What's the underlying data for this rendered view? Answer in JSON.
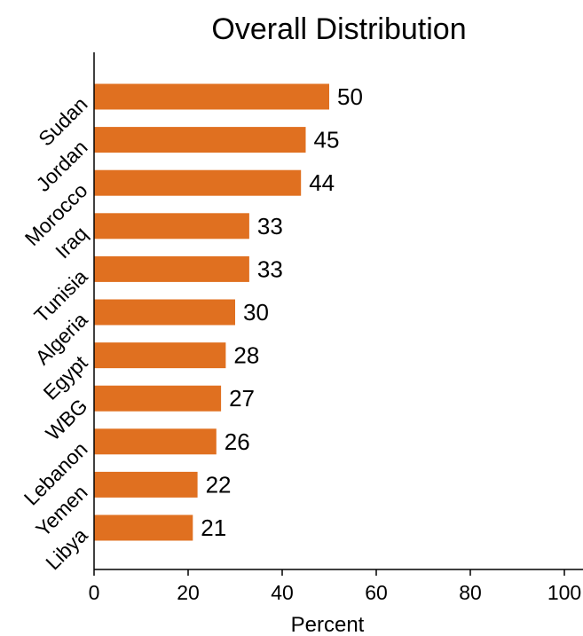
{
  "chart_data": {
    "type": "bar",
    "orientation": "horizontal",
    "title": "Overall Distribution",
    "xlabel": "Percent",
    "ylabel": "",
    "categories": [
      "Sudan",
      "Jordan",
      "Morocco",
      "Iraq",
      "Tunisia",
      "Algeria",
      "Egypt",
      "WBG",
      "Lebanon",
      "Yemen",
      "Libya"
    ],
    "values": [
      50,
      45,
      44,
      33,
      33,
      30,
      28,
      27,
      26,
      22,
      21
    ],
    "data_labels": [
      "50",
      "45",
      "44",
      "33",
      "33",
      "30",
      "28",
      "27",
      "26",
      "22",
      "21"
    ],
    "xlim": [
      0,
      100
    ],
    "xticks": [
      0,
      20,
      40,
      60,
      80,
      100
    ],
    "xtick_labels": [
      "0",
      "20",
      "40",
      "60",
      "80",
      "100"
    ],
    "bar_color": "#E07020",
    "grid": false,
    "legend": "none"
  }
}
